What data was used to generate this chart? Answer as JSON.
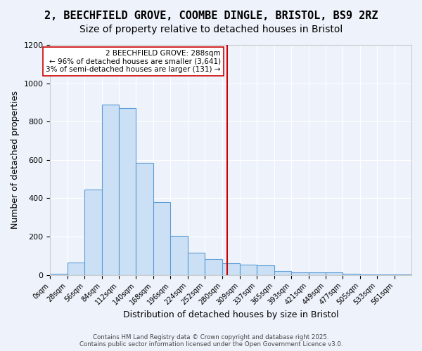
{
  "title_line1": "2, BEECHFIELD GROVE, COOMBE DINGLE, BRISTOL, BS9 2RZ",
  "title_line2": "Size of property relative to detached houses in Bristol",
  "xlabel": "Distribution of detached houses by size in Bristol",
  "ylabel": "Number of detached properties",
  "bar_edges": [
    0,
    28,
    56,
    84,
    112,
    140,
    168,
    196,
    224,
    252,
    280,
    309,
    337,
    365,
    393,
    421,
    449,
    477,
    505,
    533,
    561,
    589
  ],
  "bar_heights": [
    5,
    65,
    445,
    890,
    870,
    585,
    380,
    205,
    115,
    85,
    60,
    55,
    50,
    20,
    15,
    12,
    15,
    5,
    2,
    2,
    2
  ],
  "bar_facecolor": "#cce0f5",
  "bar_edgecolor": "#5b9bd5",
  "background_color": "#eef3fb",
  "grid_color": "#ffffff",
  "vline_x": 288,
  "vline_color": "#cc0000",
  "annotation_text": "2 BEECHFIELD GROVE: 288sqm\n← 96% of detached houses are smaller (3,641)\n3% of semi-detached houses are larger (131) →",
  "annotation_box_color": "#ffffff",
  "annotation_box_edgecolor": "#cc0000",
  "ylim": [
    0,
    1200
  ],
  "yticks": [
    0,
    200,
    400,
    600,
    800,
    1000,
    1200
  ],
  "xtick_labels": [
    "0sqm",
    "28sqm",
    "56sqm",
    "84sqm",
    "112sqm",
    "140sqm",
    "168sqm",
    "196sqm",
    "224sqm",
    "252sqm",
    "280sqm",
    "309sqm",
    "337sqm",
    "365sqm",
    "393sqm",
    "421sqm",
    "449sqm",
    "477sqm",
    "505sqm",
    "533sqm",
    "561sqm"
  ],
  "footer_text": "Contains HM Land Registry data © Crown copyright and database right 2025.\nContains public sector information licensed under the Open Government Licence v3.0.",
  "title_fontsize": 11,
  "subtitle_fontsize": 10,
  "tick_fontsize": 7,
  "label_fontsize": 9
}
